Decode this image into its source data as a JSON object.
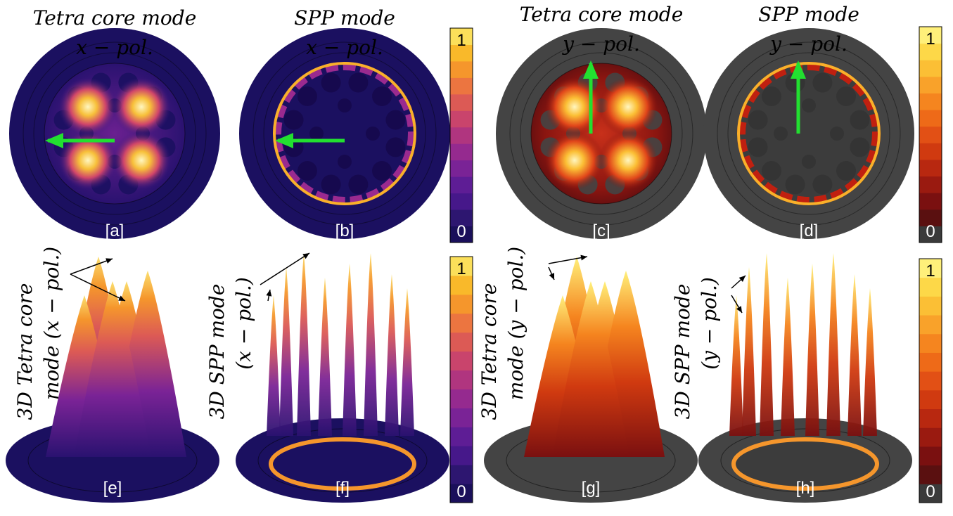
{
  "panels": [
    {
      "title": "Tetra core mode",
      "subtitle": "x − pol.",
      "label": "[a]"
    },
    {
      "title": "SPP mode",
      "subtitle": "x − pol.",
      "label": "[b]"
    },
    {
      "title": "Tetra core mode",
      "subtitle": "y − pol.",
      "label": "[c]"
    },
    {
      "title": "SPP mode",
      "subtitle": "y − pol.",
      "label": "[d]"
    }
  ],
  "bottom_panels": [
    {
      "caption_line1": "3D Tetra core",
      "caption_line2": "mode (x − pol.)",
      "label": "[e]"
    },
    {
      "caption_line1": "3D SPP mode",
      "caption_line2": "(x − pol.)",
      "label": "[f]"
    },
    {
      "caption_line1": "3D Tetra core",
      "caption_line2": "mode (y − pol.)",
      "label": "[g]"
    },
    {
      "caption_line1": "3D SPP mode",
      "caption_line2": "(y − pol.)",
      "label": "[h]"
    }
  ],
  "colorbars": [
    {
      "max": 1,
      "min": 0
    },
    {
      "max": 1,
      "min": 0
    },
    {
      "max": 1,
      "min": 0
    },
    {
      "max": 1,
      "min": 0
    }
  ]
}
